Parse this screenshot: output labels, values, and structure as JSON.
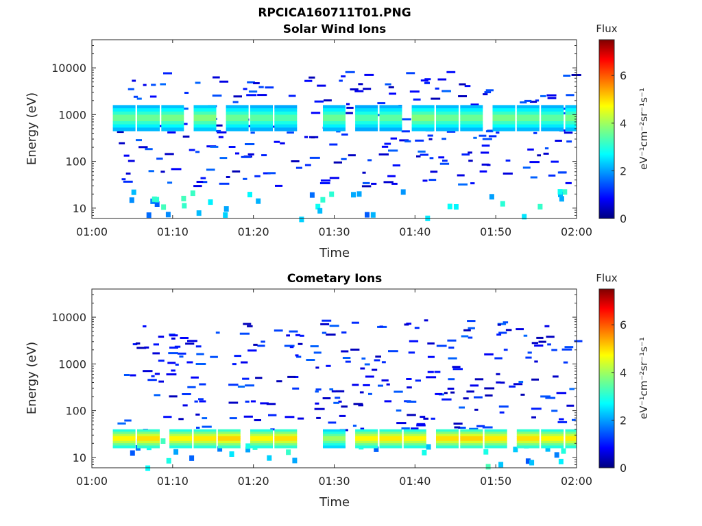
{
  "figure": {
    "title": "RPCICA160711T01.PNG"
  },
  "colorbar": {
    "label": "Flux",
    "units": "eV⁻¹cm⁻²sr⁻¹s⁻¹",
    "ticks": [
      "0",
      "2",
      "4",
      "6"
    ],
    "range": [
      0,
      7.5
    ],
    "colormap": "jet"
  },
  "chart_data": [
    {
      "type": "heatmap",
      "title": "Solar Wind Ions",
      "xlabel": "Time",
      "ylabel": "Energy (eV)",
      "x_ticks": [
        "01:00",
        "01:10",
        "01:20",
        "01:30",
        "01:40",
        "01:50",
        "02:00"
      ],
      "xlim": [
        "01:00",
        "02:00"
      ],
      "y_ticks": [
        "10",
        "100",
        "1000",
        "10000"
      ],
      "y_scale": "log",
      "ylim": [
        6,
        40000
      ],
      "cells": [
        {
          "t": "01:04",
          "e": [
            450,
            1600
          ],
          "flux": 3.8
        },
        {
          "t": "01:07",
          "e": [
            450,
            1600
          ],
          "flux": 3.8
        },
        {
          "t": "01:10",
          "e": [
            450,
            1600
          ],
          "flux": 3.9
        },
        {
          "t": "01:14",
          "e": [
            450,
            1600
          ],
          "flux": 4.0
        },
        {
          "t": "01:18",
          "e": [
            450,
            1600
          ],
          "flux": 3.8
        },
        {
          "t": "01:21",
          "e": [
            450,
            1600
          ],
          "flux": 3.7
        },
        {
          "t": "01:24",
          "e": [
            450,
            1600
          ],
          "flux": 3.6
        },
        {
          "t": "01:30",
          "e": [
            450,
            1600
          ],
          "flux": 3.8
        },
        {
          "t": "01:34",
          "e": [
            450,
            1600
          ],
          "flux": 3.6
        },
        {
          "t": "01:37",
          "e": [
            450,
            1600
          ],
          "flux": 3.7
        },
        {
          "t": "01:41",
          "e": [
            450,
            1600
          ],
          "flux": 4.0
        },
        {
          "t": "01:44",
          "e": [
            450,
            1600
          ],
          "flux": 3.8
        },
        {
          "t": "01:47",
          "e": [
            450,
            1600
          ],
          "flux": 3.8
        },
        {
          "t": "01:51",
          "e": [
            450,
            1600
          ],
          "flux": 3.9
        },
        {
          "t": "01:54",
          "e": [
            450,
            1600
          ],
          "flux": 3.8
        },
        {
          "t": "01:57",
          "e": [
            450,
            1600
          ],
          "flux": 3.7
        },
        {
          "t": "02:00",
          "e": [
            450,
            1600
          ],
          "flux": 3.9
        }
      ]
    },
    {
      "type": "heatmap",
      "title": "Cometary Ions",
      "xlabel": "Time",
      "ylabel": "Energy (eV)",
      "x_ticks": [
        "01:00",
        "01:10",
        "01:20",
        "01:30",
        "01:40",
        "01:50",
        "02:00"
      ],
      "xlim": [
        "01:00",
        "02:00"
      ],
      "y_ticks": [
        "10",
        "100",
        "1000",
        "10000"
      ],
      "y_scale": "log",
      "ylim": [
        6,
        40000
      ],
      "cells": [
        {
          "t": "01:04",
          "e": [
            16,
            40
          ],
          "flux": 5.0
        },
        {
          "t": "01:07",
          "e": [
            16,
            40
          ],
          "flux": 5.2
        },
        {
          "t": "01:11",
          "e": [
            16,
            40
          ],
          "flux": 5.0
        },
        {
          "t": "01:14",
          "e": [
            16,
            40
          ],
          "flux": 5.1
        },
        {
          "t": "01:17",
          "e": [
            16,
            40
          ],
          "flux": 5.3
        },
        {
          "t": "01:21",
          "e": [
            16,
            40
          ],
          "flux": 5.0
        },
        {
          "t": "01:24",
          "e": [
            16,
            40
          ],
          "flux": 5.2
        },
        {
          "t": "01:30",
          "e": [
            16,
            40
          ],
          "flux": 4.2
        },
        {
          "t": "01:34",
          "e": [
            16,
            40
          ],
          "flux": 5.0
        },
        {
          "t": "01:37",
          "e": [
            16,
            40
          ],
          "flux": 5.1
        },
        {
          "t": "01:40",
          "e": [
            16,
            40
          ],
          "flux": 5.0
        },
        {
          "t": "01:44",
          "e": [
            16,
            40
          ],
          "flux": 5.2
        },
        {
          "t": "01:47",
          "e": [
            16,
            40
          ],
          "flux": 5.3
        },
        {
          "t": "01:50",
          "e": [
            16,
            40
          ],
          "flux": 5.1
        },
        {
          "t": "01:54",
          "e": [
            16,
            40
          ],
          "flux": 5.2
        },
        {
          "t": "01:57",
          "e": [
            16,
            40
          ],
          "flux": 5.0
        },
        {
          "t": "02:00",
          "e": [
            16,
            40
          ],
          "flux": 5.1
        }
      ]
    }
  ]
}
